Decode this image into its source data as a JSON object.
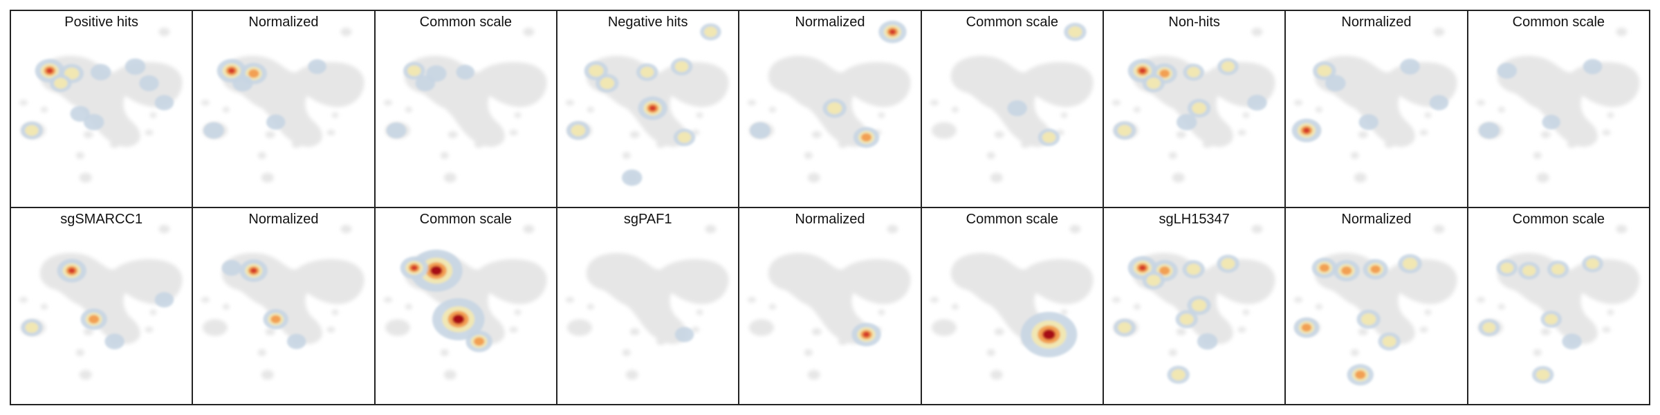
{
  "rows": [
    {
      "panels": [
        {
          "title": "Positive hits",
          "hotspots": [
            {
              "c": 0,
              "i": 1.0
            },
            {
              "c": 1,
              "i": 0.6
            },
            {
              "c": 2,
              "i": 0.45
            },
            {
              "c": 3,
              "i": 0.35
            },
            {
              "c": 4,
              "i": 0.35
            },
            {
              "c": 6,
              "i": 0.3
            },
            {
              "c": 9,
              "i": 0.35
            },
            {
              "c": 10,
              "i": 0.3
            },
            {
              "c": 11,
              "i": 0.45
            },
            {
              "c": 14,
              "i": 0.25
            }
          ]
        },
        {
          "title": "Normalized",
          "hotspots": [
            {
              "c": 0,
              "i": 1.0
            },
            {
              "c": 1,
              "i": 0.8
            },
            {
              "c": 2,
              "i": 0.35
            },
            {
              "c": 11,
              "i": 0.35
            },
            {
              "c": 9,
              "i": 0.25
            },
            {
              "c": 4,
              "i": 0.2
            }
          ]
        },
        {
          "title": "Common scale",
          "hotspots": [
            {
              "c": 0,
              "i": 0.45
            },
            {
              "c": 1,
              "i": 0.35
            },
            {
              "c": 2,
              "i": 0.3
            },
            {
              "c": 11,
              "i": 0.3
            },
            {
              "c": 3,
              "i": 0.2
            }
          ]
        }
      ]
    },
    {
      "panels": [
        {
          "title": "Negative hits",
          "hotspots": [
            {
              "c": 5,
              "i": 1.0
            },
            {
              "c": 0,
              "i": 0.6
            },
            {
              "c": 2,
              "i": 0.55
            },
            {
              "c": 11,
              "i": 0.55
            },
            {
              "c": 3,
              "i": 0.45
            },
            {
              "c": 4,
              "i": 0.45
            },
            {
              "c": 8,
              "i": 0.45
            },
            {
              "c": 12,
              "i": 0.4
            },
            {
              "c": 13,
              "i": 0.35
            }
          ]
        },
        {
          "title": "Normalized",
          "hotspots": [
            {
              "c": 12,
              "i": 0.9
            },
            {
              "c": 8,
              "i": 0.75
            },
            {
              "c": 5,
              "i": 0.6
            },
            {
              "c": 11,
              "i": 0.35
            }
          ]
        },
        {
          "title": "Common scale",
          "hotspots": [
            {
              "c": 12,
              "i": 0.5
            },
            {
              "c": 8,
              "i": 0.45
            },
            {
              "c": 5,
              "i": 0.3
            }
          ]
        }
      ]
    },
    {
      "panels": [
        {
          "title": "Non-hits",
          "hotspots": [
            {
              "c": 0,
              "i": 1.0
            },
            {
              "c": 1,
              "i": 0.7
            },
            {
              "c": 5,
              "i": 0.55
            },
            {
              "c": 2,
              "i": 0.5
            },
            {
              "c": 11,
              "i": 0.5
            },
            {
              "c": 3,
              "i": 0.4
            },
            {
              "c": 4,
              "i": 0.4
            },
            {
              "c": 9,
              "i": 0.35
            },
            {
              "c": 14,
              "i": 0.3
            }
          ]
        },
        {
          "title": "Normalized",
          "hotspots": [
            {
              "c": 11,
              "i": 1.0
            },
            {
              "c": 0,
              "i": 0.55
            },
            {
              "c": 2,
              "i": 0.35
            },
            {
              "c": 4,
              "i": 0.3
            },
            {
              "c": 9,
              "i": 0.3
            },
            {
              "c": 14,
              "i": 0.25
            }
          ]
        },
        {
          "title": "Common scale",
          "hotspots": [
            {
              "c": 11,
              "i": 0.35
            },
            {
              "c": 0,
              "i": 0.3
            },
            {
              "c": 4,
              "i": 0.25
            },
            {
              "c": 9,
              "i": 0.2
            }
          ]
        }
      ]
    },
    {
      "panels": [
        {
          "title": "sgSMARCC1",
          "hotspots": [
            {
              "c": 1,
              "i": 1.0
            },
            {
              "c": 9,
              "i": 0.8
            },
            {
              "c": 11,
              "i": 0.4
            },
            {
              "c": 7,
              "i": 0.3
            },
            {
              "c": 14,
              "i": 0.25
            }
          ]
        },
        {
          "title": "Normalized",
          "hotspots": [
            {
              "c": 1,
              "i": 0.9
            },
            {
              "c": 9,
              "i": 0.7
            },
            {
              "c": 0,
              "i": 0.3
            },
            {
              "c": 7,
              "i": 0.25
            }
          ]
        },
        {
          "title": "Common scale",
          "hotspots": [
            {
              "c": 1,
              "i": 1.4
            },
            {
              "c": 9,
              "i": 1.4
            },
            {
              "c": 0,
              "i": 0.9
            },
            {
              "c": 7,
              "i": 0.8
            }
          ]
        }
      ]
    },
    {
      "panels": [
        {
          "title": "sgPAF1",
          "hotspots": [
            {
              "c": 8,
              "i": 0.25
            }
          ]
        },
        {
          "title": "Normalized",
          "hotspots": [
            {
              "c": 8,
              "i": 1.0
            }
          ]
        },
        {
          "title": "Common scale",
          "hotspots": [
            {
              "c": 8,
              "i": 1.6
            }
          ]
        }
      ]
    },
    {
      "panels": [
        {
          "title": "sgLH15347",
          "hotspots": [
            {
              "c": 0,
              "i": 1.0
            },
            {
              "c": 1,
              "i": 0.8
            },
            {
              "c": 5,
              "i": 0.6
            },
            {
              "c": 2,
              "i": 0.5
            },
            {
              "c": 3,
              "i": 0.5
            },
            {
              "c": 4,
              "i": 0.5
            },
            {
              "c": 9,
              "i": 0.5
            },
            {
              "c": 11,
              "i": 0.45
            },
            {
              "c": 13,
              "i": 0.5
            },
            {
              "c": 7,
              "i": 0.35
            }
          ]
        },
        {
          "title": "Normalized",
          "hotspots": [
            {
              "c": 0,
              "i": 0.7
            },
            {
              "c": 1,
              "i": 0.8
            },
            {
              "c": 3,
              "i": 0.7
            },
            {
              "c": 4,
              "i": 0.6
            },
            {
              "c": 9,
              "i": 0.6
            },
            {
              "c": 13,
              "i": 0.8
            },
            {
              "c": 11,
              "i": 0.7
            },
            {
              "c": 7,
              "i": 0.5
            }
          ]
        },
        {
          "title": "Common scale",
          "hotspots": [
            {
              "c": 0,
              "i": 0.4
            },
            {
              "c": 1,
              "i": 0.45
            },
            {
              "c": 3,
              "i": 0.45
            },
            {
              "c": 4,
              "i": 0.4
            },
            {
              "c": 9,
              "i": 0.4
            },
            {
              "c": 13,
              "i": 0.45
            },
            {
              "c": 11,
              "i": 0.4
            },
            {
              "c": 7,
              "i": 0.3
            }
          ]
        }
      ]
    }
  ]
}
